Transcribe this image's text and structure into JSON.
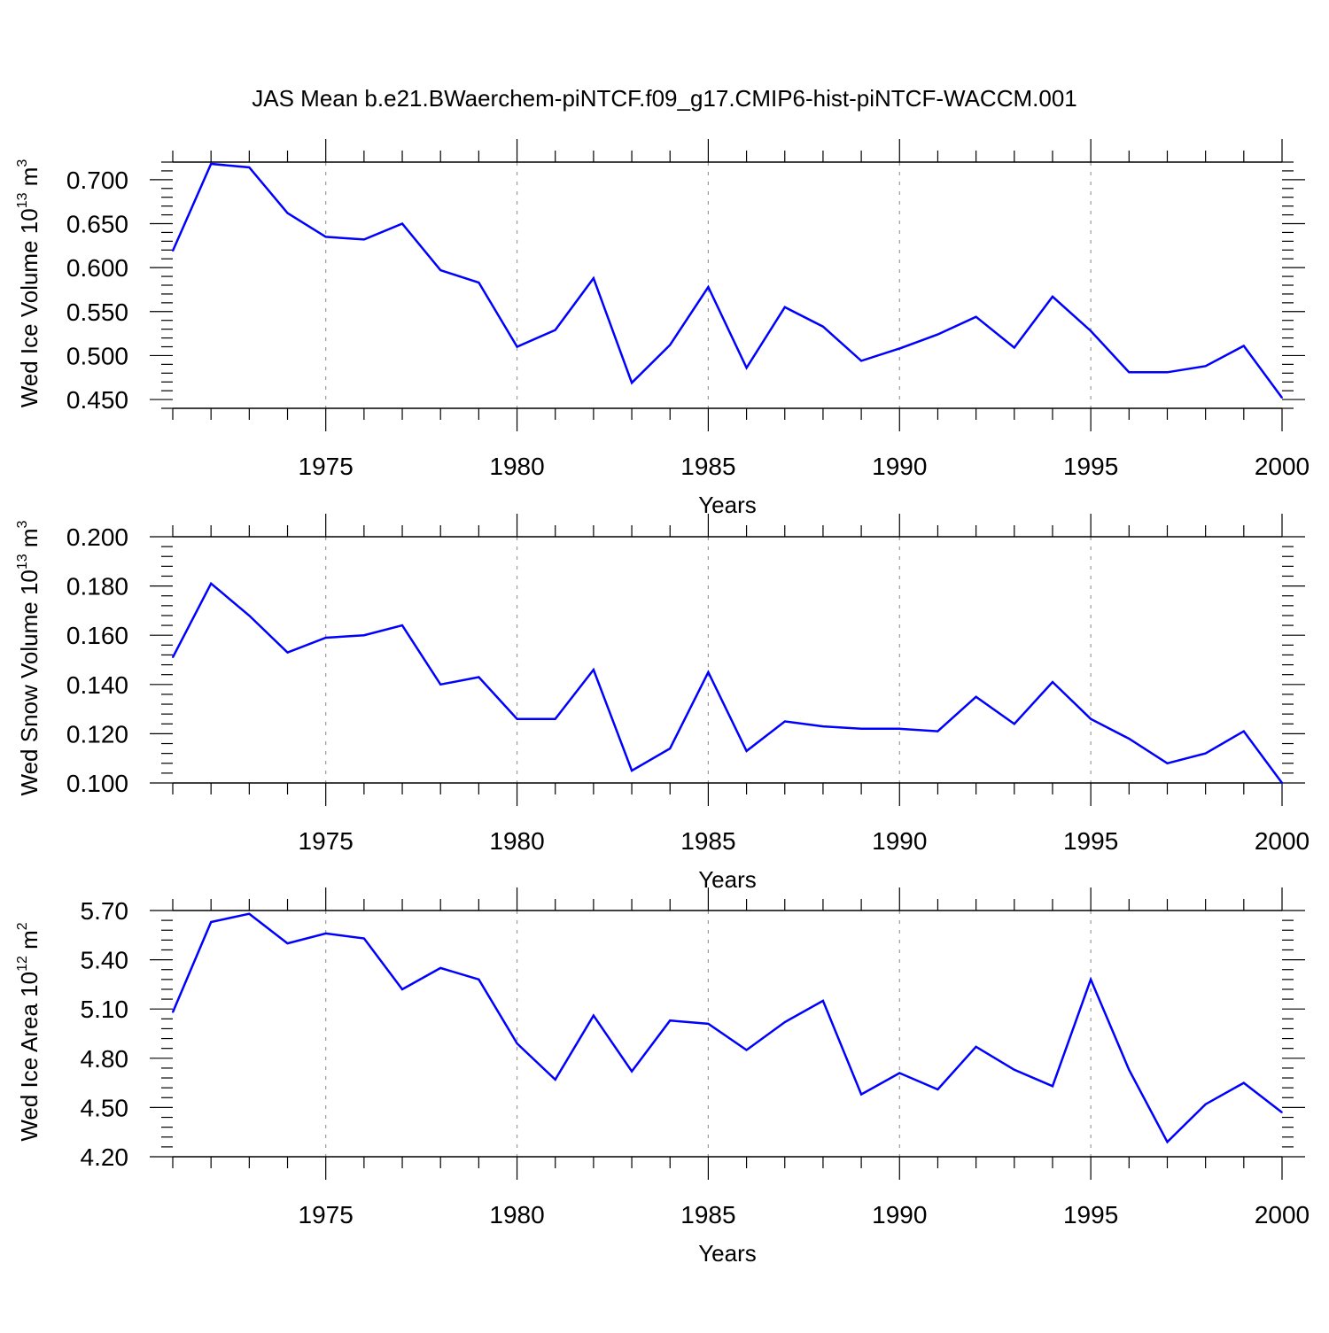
{
  "title": "JAS Mean b.e21.BWaerchem-piNTCF.f09_g17.CMIP6-hist-piNTCF-WACCM.001",
  "colors": {
    "line": "#0000ff",
    "axis": "#000000",
    "grid": "#999999"
  },
  "chart_data": [
    {
      "type": "line",
      "ylabel": {
        "main": "Wed Ice Volume 10",
        "sup": "13",
        "unit": " m",
        "unit_sup": "3"
      },
      "xlabel": "Years",
      "xlim": [
        1971,
        2000
      ],
      "ylim": [
        0.44,
        0.72
      ],
      "x_tick_labels": [
        "1975",
        "1980",
        "1985",
        "1990",
        "1995",
        "2000"
      ],
      "y_tick_labels": [
        "0.450",
        "0.500",
        "0.550",
        "0.600",
        "0.650",
        "0.700"
      ],
      "grid": "vertical dashed at labeled years",
      "series": [
        {
          "x": [
            1971,
            1972,
            1973,
            1974,
            1975,
            1976,
            1977,
            1978,
            1979,
            1980,
            1981,
            1982,
            1983,
            1984,
            1985,
            1986,
            1987,
            1988,
            1989,
            1990,
            1991,
            1992,
            1993,
            1994,
            1995,
            1996,
            1997,
            1998,
            1999,
            2000
          ],
          "values": [
            0.619,
            0.718,
            0.714,
            0.662,
            0.635,
            0.632,
            0.65,
            0.597,
            0.583,
            0.51,
            0.529,
            0.588,
            0.469,
            0.512,
            0.578,
            0.486,
            0.555,
            0.533,
            0.494,
            0.508,
            0.524,
            0.544,
            0.509,
            0.567,
            0.528,
            0.481,
            0.481,
            0.488,
            0.511,
            0.452
          ]
        }
      ]
    },
    {
      "type": "line",
      "ylabel": {
        "main": "Wed Snow Volume 10",
        "sup": "13",
        "unit": " m",
        "unit_sup": "3"
      },
      "xlabel": "Years",
      "xlim": [
        1971,
        2000
      ],
      "ylim": [
        0.1,
        0.2
      ],
      "x_tick_labels": [
        "1975",
        "1980",
        "1985",
        "1990",
        "1995",
        "2000"
      ],
      "y_tick_labels": [
        "0.100",
        "0.120",
        "0.140",
        "0.160",
        "0.180",
        "0.200"
      ],
      "grid": "vertical dashed at labeled years",
      "series": [
        {
          "x": [
            1971,
            1972,
            1973,
            1974,
            1975,
            1976,
            1977,
            1978,
            1979,
            1980,
            1981,
            1982,
            1983,
            1984,
            1985,
            1986,
            1987,
            1988,
            1989,
            1990,
            1991,
            1992,
            1993,
            1994,
            1995,
            1996,
            1997,
            1998,
            1999,
            2000
          ],
          "values": [
            0.151,
            0.181,
            0.168,
            0.153,
            0.159,
            0.16,
            0.164,
            0.14,
            0.143,
            0.126,
            0.126,
            0.146,
            0.105,
            0.114,
            0.145,
            0.113,
            0.125,
            0.123,
            0.122,
            0.122,
            0.121,
            0.135,
            0.124,
            0.141,
            0.126,
            0.118,
            0.108,
            0.112,
            0.121,
            0.1
          ]
        }
      ]
    },
    {
      "type": "line",
      "ylabel": {
        "main": "Wed Ice Area 10",
        "sup": "12",
        "unit": " m",
        "unit_sup": "2"
      },
      "xlabel": "Years",
      "xlim": [
        1971,
        2000
      ],
      "ylim": [
        4.2,
        5.7
      ],
      "x_tick_labels": [
        "1975",
        "1980",
        "1985",
        "1990",
        "1995",
        "2000"
      ],
      "y_tick_labels": [
        "4.20",
        "4.50",
        "4.80",
        "5.10",
        "5.40",
        "5.70"
      ],
      "grid": "vertical dashed at labeled years",
      "series": [
        {
          "x": [
            1971,
            1972,
            1973,
            1974,
            1975,
            1976,
            1977,
            1978,
            1979,
            1980,
            1981,
            1982,
            1983,
            1984,
            1985,
            1986,
            1987,
            1988,
            1989,
            1990,
            1991,
            1992,
            1993,
            1994,
            1995,
            1996,
            1997,
            1998,
            1999,
            2000
          ],
          "values": [
            5.08,
            5.63,
            5.68,
            5.5,
            5.56,
            5.53,
            5.22,
            5.35,
            5.28,
            4.89,
            4.67,
            5.06,
            4.72,
            5.03,
            5.01,
            4.85,
            5.02,
            5.15,
            4.58,
            4.71,
            4.61,
            4.87,
            4.73,
            4.63,
            5.28,
            4.73,
            4.29,
            4.52,
            4.65,
            4.47
          ]
        }
      ]
    }
  ]
}
